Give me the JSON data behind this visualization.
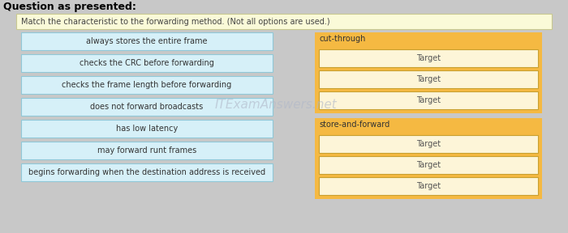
{
  "title": "Question as presented:",
  "instruction": "Match the characteristic to the forwarding method. (Not all options are used.)",
  "left_items": [
    "always stores the entire frame",
    "checks the CRC before forwarding",
    "checks the frame length before forwarding",
    "does not forward broadcasts",
    "has low latency",
    "may forward runt frames",
    "begins forwarding when the destination address is received"
  ],
  "right_groups": [
    {
      "label": "cut-through",
      "targets": [
        "Target",
        "Target",
        "Target"
      ]
    },
    {
      "label": "store-and-forward",
      "targets": [
        "Target",
        "Target",
        "Target"
      ]
    }
  ],
  "bg_color": "#c8c8c8",
  "left_box_color": "#d6f0f8",
  "left_box_edge": "#90c8d8",
  "right_group_bg": "#f5b942",
  "right_target_bg": "#fdf5d8",
  "right_target_edge": "#c8a030",
  "instruction_bg": "#fafad8",
  "instruction_edge": "#c8c890",
  "watermark": "ITExamAnswers.net",
  "watermark_color": "#b0b8c8",
  "title_fontsize": 9,
  "item_fontsize": 7,
  "label_fontsize": 7
}
